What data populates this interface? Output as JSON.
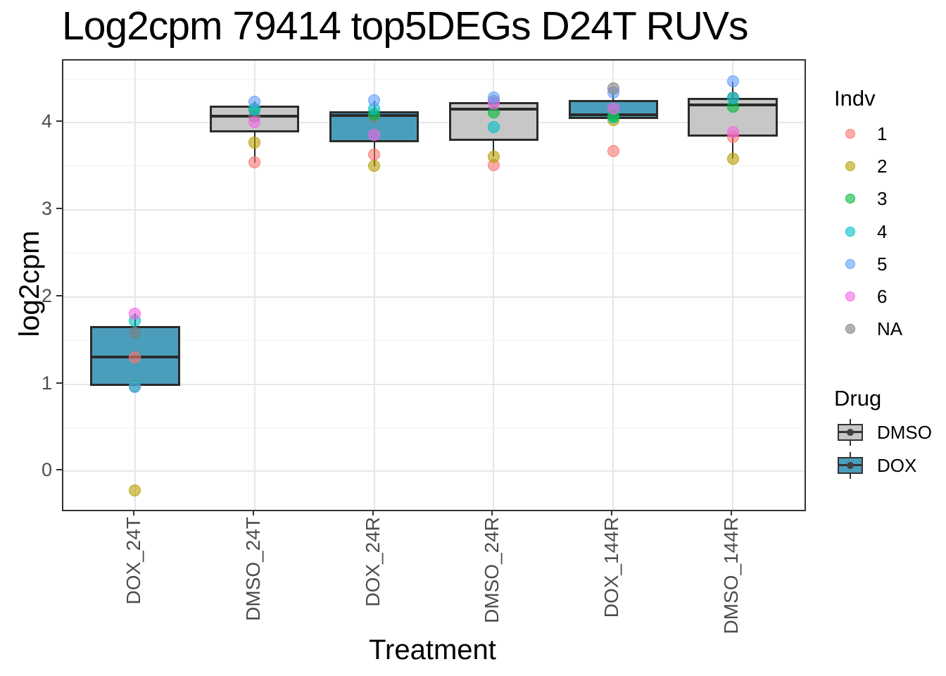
{
  "chart_data": {
    "type": "boxplot",
    "title": "Log2cpm 79414 top5DEGs D24T RUVs",
    "xlabel": "Treatment",
    "ylabel": "log2cpm",
    "categories": [
      "DOX_24T",
      "DMSO_24T",
      "DOX_24R",
      "DMSO_24R",
      "DOX_144R",
      "DMSO_144R"
    ],
    "ylim": [
      -0.44,
      4.71
    ],
    "yticks": [
      0,
      1,
      2,
      3,
      4
    ],
    "yminor": [
      0.5,
      1.5,
      2.5,
      3.5,
      4.5
    ],
    "grid": "white panel, light gray major and minor horizontal gridlines, vertical major gridlines at categories",
    "legend_position": "right",
    "point_alpha": 0.6,
    "drug_fill": {
      "DMSO": "#c7c7c7",
      "DOX": "#4a9ebc"
    },
    "indv_colors": {
      "1": "#F8766D",
      "2": "#B79F00",
      "3": "#00BA38",
      "4": "#00BFC4",
      "5": "#619CFF",
      "6": "#F564E3",
      "NA": "#7F7F7F"
    },
    "boxes": [
      {
        "category": "DOX_24T",
        "drug": "DOX",
        "q1": 0.98,
        "median": 1.31,
        "q3": 1.67,
        "whisker_low": 0.98,
        "whisker_high": 1.81,
        "points": [
          {
            "indv": "2",
            "value": -0.22
          },
          {
            "indv": "3",
            "value": 0.98
          },
          {
            "indv": "5",
            "value": 0.97
          },
          {
            "indv": "1",
            "value": 1.31
          },
          {
            "indv": "NA",
            "value": 1.59
          },
          {
            "indv": "4",
            "value": 1.73
          },
          {
            "indv": "6",
            "value": 1.81
          }
        ]
      },
      {
        "category": "DMSO_24T",
        "drug": "DMSO",
        "q1": 3.89,
        "median": 4.07,
        "q3": 4.19,
        "whisker_low": 3.54,
        "whisker_high": 4.24,
        "points": [
          {
            "indv": "1",
            "value": 3.54
          },
          {
            "indv": "2",
            "value": 3.77
          },
          {
            "indv": "3",
            "value": 4.16
          },
          {
            "indv": "NA",
            "value": 4.07
          },
          {
            "indv": "6",
            "value": 4.0
          },
          {
            "indv": "4",
            "value": 4.15
          },
          {
            "indv": "5",
            "value": 4.24
          }
        ]
      },
      {
        "category": "DOX_24R",
        "drug": "DOX",
        "q1": 3.77,
        "median": 4.08,
        "q3": 4.13,
        "whisker_low": 3.5,
        "whisker_high": 4.25,
        "points": [
          {
            "indv": "2",
            "value": 3.5
          },
          {
            "indv": "1",
            "value": 3.63
          },
          {
            "indv": "6",
            "value": 3.86
          },
          {
            "indv": "NA",
            "value": 4.07
          },
          {
            "indv": "3",
            "value": 4.09
          },
          {
            "indv": "4",
            "value": 4.16
          },
          {
            "indv": "5",
            "value": 4.25
          }
        ]
      },
      {
        "category": "DMSO_24R",
        "drug": "DMSO",
        "q1": 3.79,
        "median": 4.15,
        "q3": 4.23,
        "whisker_low": 3.61,
        "whisker_high": 4.285,
        "points": [
          {
            "indv": "1",
            "value": 3.51
          },
          {
            "indv": "2",
            "value": 3.61
          },
          {
            "indv": "4",
            "value": 3.95
          },
          {
            "indv": "3",
            "value": 4.12
          },
          {
            "indv": "NA",
            "value": 4.245
          },
          {
            "indv": "6",
            "value": 4.21
          },
          {
            "indv": "5",
            "value": 4.285
          }
        ]
      },
      {
        "category": "DOX_144R",
        "drug": "DOX",
        "q1": 4.04,
        "median": 4.09,
        "q3": 4.26,
        "whisker_low": 4.04,
        "whisker_high": 4.33,
        "points": [
          {
            "indv": "1",
            "value": 3.67
          },
          {
            "indv": "2",
            "value": 4.03
          },
          {
            "indv": "4",
            "value": 4.06
          },
          {
            "indv": "3",
            "value": 4.08
          },
          {
            "indv": "6",
            "value": 4.16
          },
          {
            "indv": "5",
            "value": 4.34
          },
          {
            "indv": "NA",
            "value": 4.39
          }
        ]
      },
      {
        "category": "DMSO_144R",
        "drug": "DMSO",
        "q1": 3.84,
        "median": 4.2,
        "q3": 4.285,
        "whisker_low": 3.585,
        "whisker_high": 4.47,
        "points": [
          {
            "indv": "2",
            "value": 3.585
          },
          {
            "indv": "1",
            "value": 3.835
          },
          {
            "indv": "6",
            "value": 3.89
          },
          {
            "indv": "3",
            "value": 4.18
          },
          {
            "indv": "NA",
            "value": 4.29
          },
          {
            "indv": "4",
            "value": 4.28
          },
          {
            "indv": "5",
            "value": 4.47
          }
        ]
      }
    ]
  },
  "legend_indv": {
    "title": "Indv",
    "items": [
      {
        "label": "1",
        "color": "#F8766D"
      },
      {
        "label": "2",
        "color": "#B79F00"
      },
      {
        "label": "3",
        "color": "#00BA38"
      },
      {
        "label": "4",
        "color": "#00BFC4"
      },
      {
        "label": "5",
        "color": "#619CFF"
      },
      {
        "label": "6",
        "color": "#F564E3"
      },
      {
        "label": "NA",
        "color": "#7F7F7F"
      }
    ]
  },
  "legend_drug": {
    "title": "Drug",
    "items": [
      {
        "label": "DMSO",
        "color": "#c7c7c7"
      },
      {
        "label": "DOX",
        "color": "#4a9ebc"
      }
    ]
  }
}
